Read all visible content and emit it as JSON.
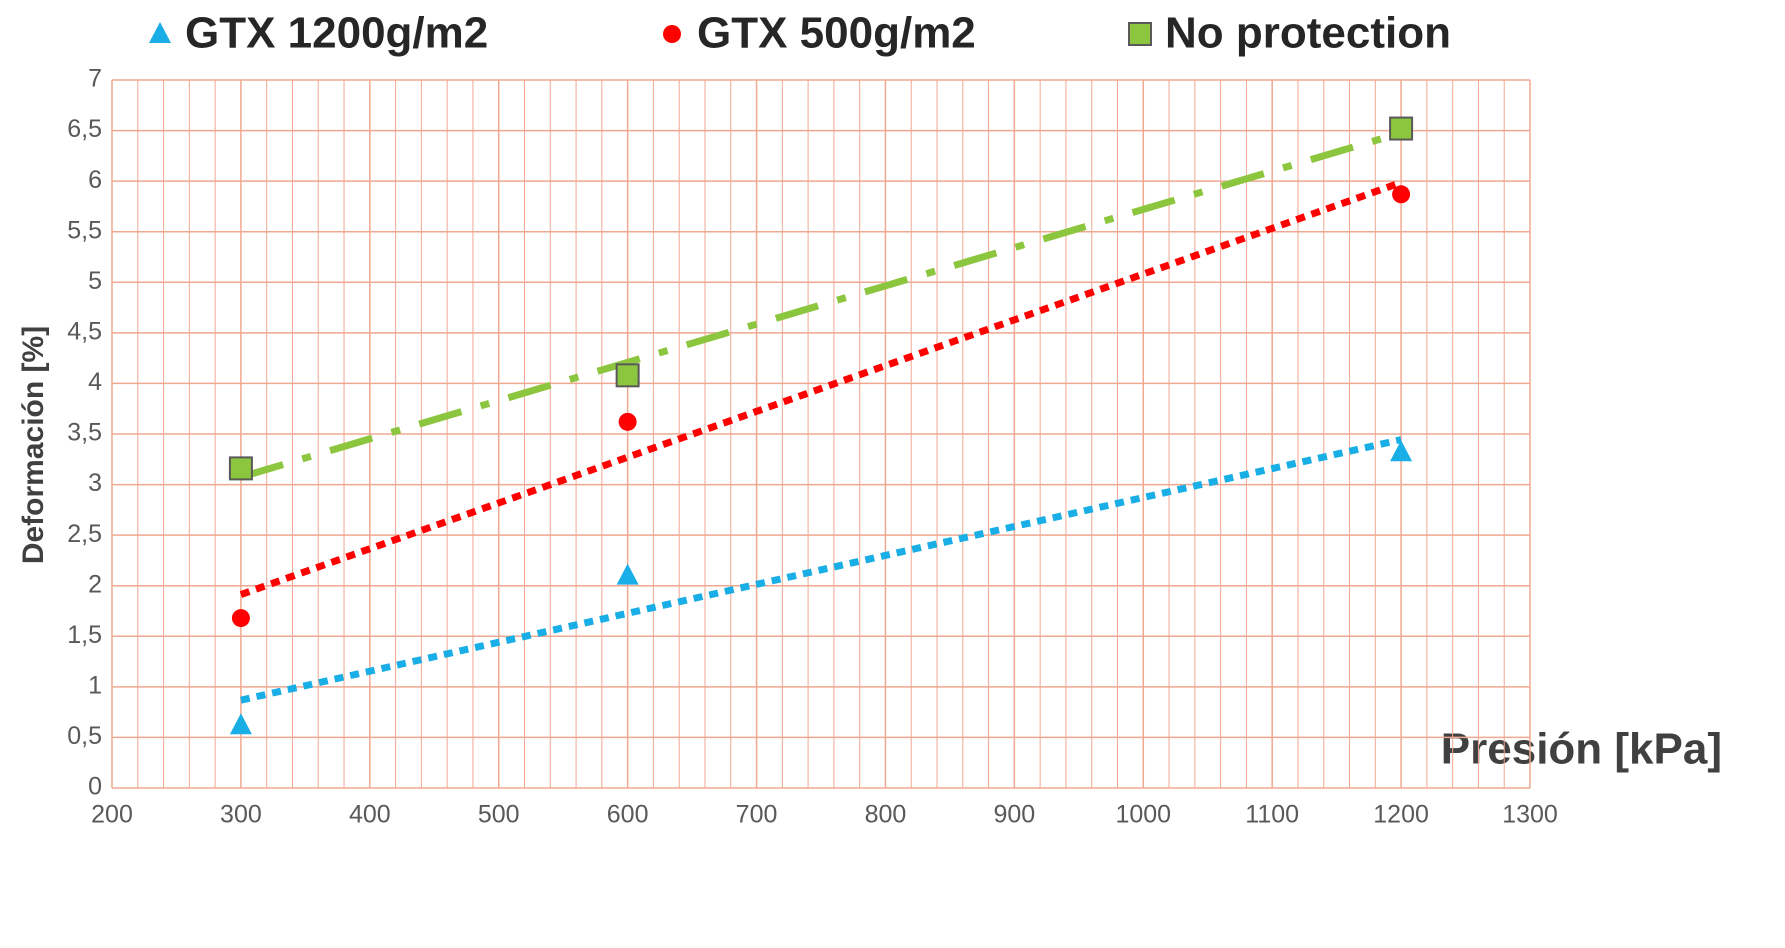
{
  "chart_data": {
    "type": "scatter",
    "x_label": "Presión [kPa]",
    "y_label": "Deformación [%]",
    "series": [
      {
        "name": "GTX 1200g/m2",
        "color": "#1aaee6",
        "marker": "triangle",
        "x": [
          300,
          600,
          1200
        ],
        "values": [
          0.62,
          2.1,
          3.32
        ]
      },
      {
        "name": "GTX 500g/m2",
        "color": "#ff0000",
        "marker": "circle",
        "x": [
          300,
          600,
          1200
        ],
        "values": [
          1.68,
          3.62,
          5.87
        ]
      },
      {
        "name": "No protection",
        "color": "#8cc63f",
        "marker": "square",
        "x": [
          300,
          600,
          1200
        ],
        "values": [
          3.16,
          4.08,
          6.52
        ]
      }
    ],
    "trendline": "linear",
    "xlim": [
      200,
      1300
    ],
    "xticks": [
      200,
      300,
      400,
      500,
      600,
      700,
      800,
      900,
      1000,
      1100,
      1200,
      1300
    ],
    "ylim": [
      0,
      7
    ],
    "yticks": [
      0,
      {
        "value": 0.5,
        "label": "0,5"
      },
      1,
      {
        "value": 1.5,
        "label": "1,5"
      },
      2,
      {
        "value": 2.5,
        "label": "2,5"
      },
      3,
      {
        "value": 3.5,
        "label": "3,5"
      },
      4,
      {
        "value": 4.5,
        "label": "4,5"
      },
      5,
      {
        "value": 5.5,
        "label": "5,5"
      },
      6,
      {
        "value": 6.5,
        "label": "6,5"
      },
      7
    ],
    "grid": true,
    "grid_color": "#f0a890",
    "legend": "top"
  }
}
